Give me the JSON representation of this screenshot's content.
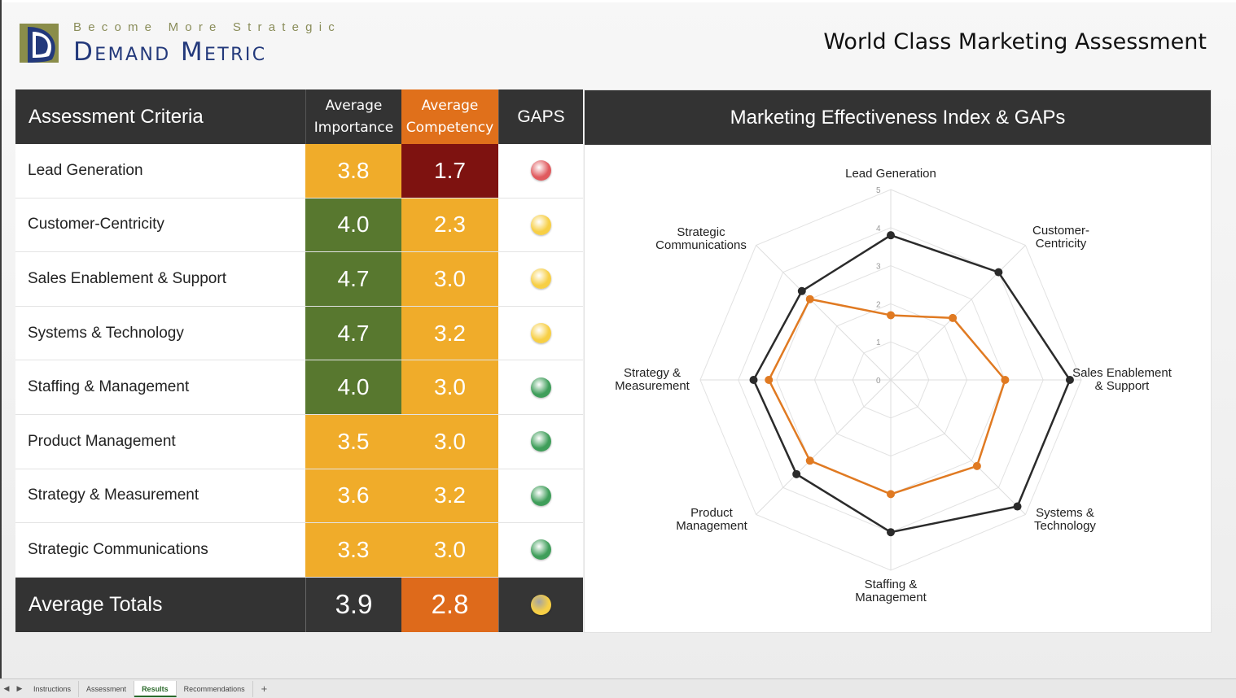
{
  "logo": {
    "tagline": "Become More Strategic",
    "name": "Demand Metric"
  },
  "page_title": "World Class Marketing Assessment",
  "table": {
    "headers": {
      "criteria": "Assessment Criteria",
      "importance_line1": "Average",
      "importance_line2": "Importance",
      "competency_line1": "Average",
      "competency_line2": "Competency",
      "gaps": "GAPS"
    },
    "rows": [
      {
        "label": "Lead Generation",
        "importance": "3.8",
        "competency": "1.7",
        "importance_color": "#f0ac2a",
        "competency_color": "#7e1210",
        "gap_color": "#e05a5e"
      },
      {
        "label": "Customer-Centricity",
        "importance": "4.0",
        "competency": "2.3",
        "importance_color": "#58782f",
        "competency_color": "#f0ac2a",
        "gap_color": "#f7cf45"
      },
      {
        "label": "Sales Enablement & Support",
        "importance": "4.7",
        "competency": "3.0",
        "importance_color": "#58782f",
        "competency_color": "#f0ac2a",
        "gap_color": "#f7cf45"
      },
      {
        "label": "Systems & Technology",
        "importance": "4.7",
        "competency": "3.2",
        "importance_color": "#58782f",
        "competency_color": "#f0ac2a",
        "gap_color": "#f7cf45"
      },
      {
        "label": "Staffing & Management",
        "importance": "4.0",
        "competency": "3.0",
        "importance_color": "#58782f",
        "competency_color": "#f0ac2a",
        "gap_color": "#3f9e5a"
      },
      {
        "label": "Product Management",
        "importance": "3.5",
        "competency": "3.0",
        "importance_color": "#f0ac2a",
        "competency_color": "#f0ac2a",
        "gap_color": "#3f9e5a"
      },
      {
        "label": "Strategy & Measurement",
        "importance": "3.6",
        "competency": "3.2",
        "importance_color": "#f0ac2a",
        "competency_color": "#f0ac2a",
        "gap_color": "#3f9e5a"
      },
      {
        "label": "Strategic Communications",
        "importance": "3.3",
        "competency": "3.0",
        "importance_color": "#f0ac2a",
        "competency_color": "#f0ac2a",
        "gap_color": "#3f9e5a"
      }
    ],
    "totals": {
      "label": "Average Totals",
      "importance": "3.9",
      "competency": "2.8",
      "gap_color": "#f7cf45"
    }
  },
  "chart_header": "Marketing Effectiveness Index & GAPs",
  "chart_data": {
    "type": "radar",
    "title": "Marketing Effectiveness Index & GAPs",
    "axes": [
      [
        "Lead Generation"
      ],
      [
        "Customer-",
        "Centricity"
      ],
      [
        "Sales Enablement",
        "& Support"
      ],
      [
        "Systems &",
        "Technology"
      ],
      [
        "Staffing &",
        "Management"
      ],
      [
        "Product",
        "Management"
      ],
      [
        "Strategy &",
        "Measurement"
      ],
      [
        "Strategic",
        "Communications"
      ]
    ],
    "scale_ticks": [
      "0",
      "1",
      "2",
      "3",
      "4",
      "5"
    ],
    "range": [
      0,
      5
    ],
    "series": [
      {
        "values": [
          3.8,
          4.0,
          4.7,
          4.7,
          4.0,
          3.5,
          3.6,
          3.3
        ],
        "color": "#2b2b2b"
      },
      {
        "values": [
          1.7,
          2.3,
          3.0,
          3.2,
          3.0,
          3.0,
          3.2,
          3.0
        ],
        "color": "#e07a22"
      }
    ]
  },
  "sheet_tabs": {
    "nav_prev": "◀",
    "nav_next": "▶",
    "items": [
      "Instructions",
      "Assessment",
      "Results",
      "Recommendations"
    ],
    "active": "Results",
    "add": "+"
  }
}
